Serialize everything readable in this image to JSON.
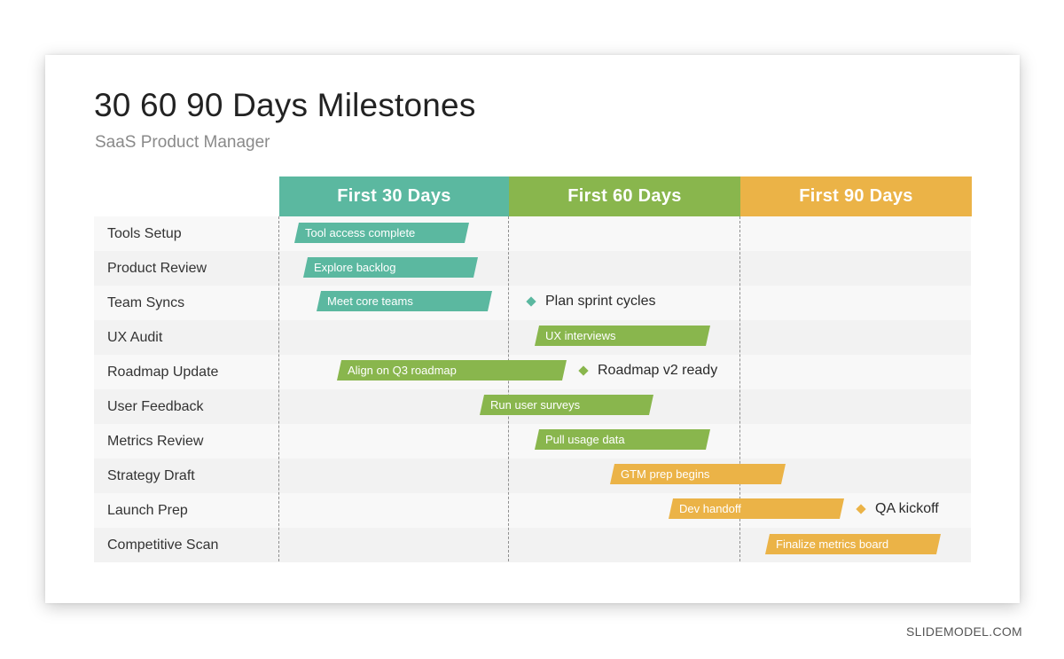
{
  "colors": {
    "teal": "#5bb8a0",
    "green": "#89b64d",
    "orange": "#ebb347",
    "row_light": "#f8f8f8",
    "row_dark": "#f2f2f2"
  },
  "slide": {
    "title": "30 60 90 Days Milestones",
    "subtitle": "SaaS Product Manager"
  },
  "phases": [
    {
      "label": "First 30 Days",
      "color": "teal"
    },
    {
      "label": "First 60 Days",
      "color": "green"
    },
    {
      "label": "First 90 Days",
      "color": "orange"
    }
  ],
  "rows": [
    {
      "label": "Tools Setup"
    },
    {
      "label": "Product Review"
    },
    {
      "label": "Team Syncs"
    },
    {
      "label": "UX Audit"
    },
    {
      "label": "Roadmap Update"
    },
    {
      "label": "User Feedback"
    },
    {
      "label": "Metrics Review"
    },
    {
      "label": "Strategy Draft"
    },
    {
      "label": "Launch Prep"
    },
    {
      "label": "Competitive Scan"
    }
  ],
  "bars": [
    {
      "label": "Tool access complete",
      "color": "teal"
    },
    {
      "label": "Explore backlog",
      "color": "teal"
    },
    {
      "label": "Meet core teams",
      "color": "teal"
    },
    {
      "label": "UX interviews",
      "color": "green"
    },
    {
      "label": "Align on Q3 roadmap",
      "color": "green"
    },
    {
      "label": "Run user surveys",
      "color": "green"
    },
    {
      "label": "Pull usage data",
      "color": "green"
    },
    {
      "label": "GTM prep begins",
      "color": "orange"
    },
    {
      "label": "Dev handoff",
      "color": "orange"
    },
    {
      "label": "Finalize metrics board",
      "color": "orange"
    }
  ],
  "milestones": [
    {
      "label": "Plan sprint cycles",
      "color": "teal"
    },
    {
      "label": "Roadmap v2 ready",
      "color": "green"
    },
    {
      "label": "QA kickoff",
      "color": "orange"
    }
  ],
  "footer": {
    "brand": "SLIDEMODEL.COM"
  }
}
